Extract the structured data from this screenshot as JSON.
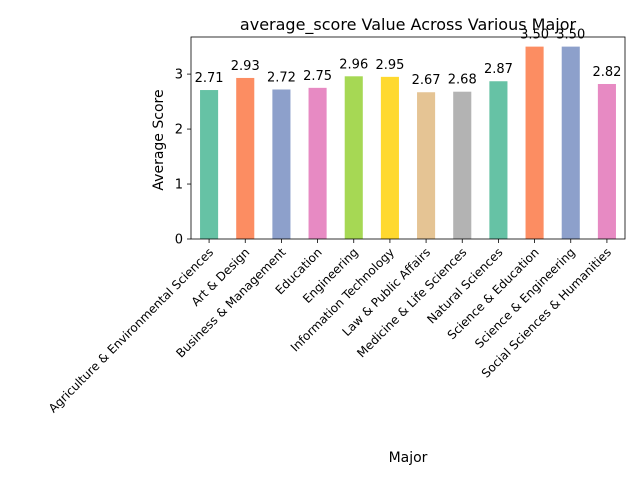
{
  "chart_data": {
    "type": "bar",
    "title": "average_score Value Across Various Major",
    "xlabel": "Major",
    "ylabel": "Average Score",
    "categories": [
      "Agriculture & Environmental Sciences",
      "Art & Design",
      "Business & Management",
      "Education",
      "Engineering",
      "Information Technology",
      "Law & Public Affairs",
      "Medicine & Life Sciences",
      "Natural Sciences",
      "Science & Education",
      "Science & Engineering",
      "Social Sciences & Humanities"
    ],
    "values": [
      2.71,
      2.93,
      2.72,
      2.75,
      2.96,
      2.95,
      2.67,
      2.68,
      2.87,
      3.5,
      3.5,
      2.82
    ],
    "value_labels": [
      "2.71",
      "2.93",
      "2.72",
      "2.75",
      "2.96",
      "2.95",
      "2.67",
      "2.68",
      "2.87",
      "3.50",
      "3.50",
      "2.82"
    ],
    "colors": [
      "#66c2a5",
      "#fc8d62",
      "#8da0cb",
      "#e78ac3",
      "#a6d854",
      "#ffd92f",
      "#e5c494",
      "#b3b3b3",
      "#66c2a5",
      "#fc8d62",
      "#8da0cb",
      "#e78ac3"
    ],
    "ylim": [
      0,
      3.675
    ],
    "yticks": [
      0,
      1,
      2,
      3
    ],
    "ytick_labels": [
      "0",
      "1",
      "2",
      "3"
    ],
    "grid": false,
    "legend": false
  }
}
